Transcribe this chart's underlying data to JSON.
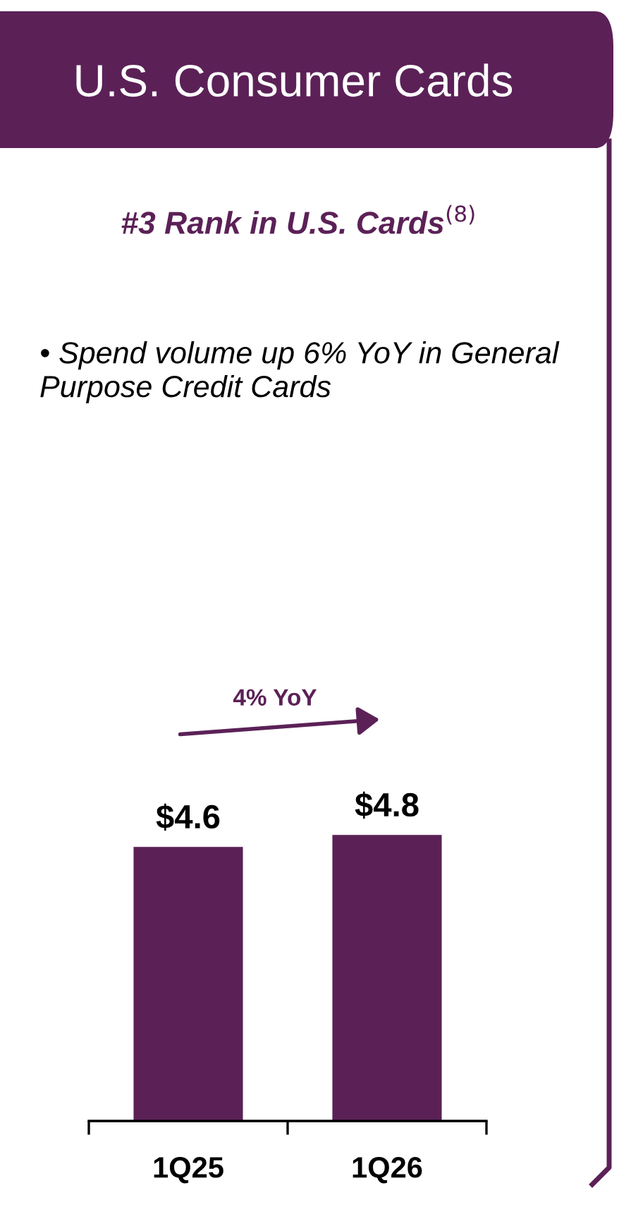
{
  "chart_data": {
    "type": "bar",
    "title": "U.S. Consumer Cards",
    "subtitle": "#3 Rank in U.S. Cards$^{(8)}$",
    "annotations": [
      "• Spend volume up 6% YoY in General Purpose Credit Cards",
      "4% YoY"
    ],
    "categories": [
      "1Q25",
      "1Q26"
    ],
    "values": [
      4.6,
      4.8
    ],
    "color": "#5b2157",
    "value_labels": [
      "$4.6",
      "$4.8"
    ],
    "grid": false,
    "legend": false
  }
}
